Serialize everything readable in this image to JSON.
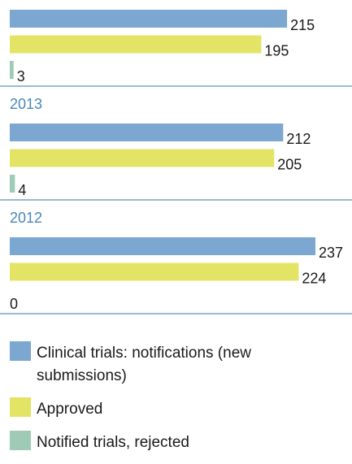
{
  "chart_data": {
    "type": "bar",
    "orientation": "horizontal",
    "categories": [
      null,
      "2013",
      "2012"
    ],
    "series": [
      {
        "name": "Clinical trials: notifications (new submissions)",
        "color": "#7ba7d0",
        "values": [
          215,
          212,
          237
        ]
      },
      {
        "name": "Approved",
        "color": "#e3e465",
        "values": [
          195,
          205,
          224
        ]
      },
      {
        "name": "Notified trials, rejected",
        "color": "#9fcab5",
        "values": [
          3,
          4,
          0
        ]
      }
    ]
  }
}
